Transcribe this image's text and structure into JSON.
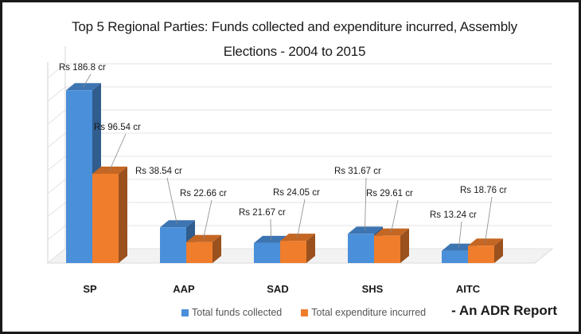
{
  "chart_data": {
    "type": "bar",
    "title": "Top 5 Regional Parties: Funds collected and expenditure incurred, Assembly Elections - 2004 to 2015",
    "categories": [
      "SP",
      "AAP",
      "SAD",
      "SHS",
      "AITC"
    ],
    "series": [
      {
        "name": "Total funds collected",
        "color": "#4a8fd9",
        "values": [
          186.8,
          38.54,
          21.67,
          31.67,
          13.24
        ],
        "labels": [
          "Rs 186.8 cr",
          "Rs 38.54 cr",
          "Rs 21.67 cr",
          "Rs 31.67 cr",
          "Rs 13.24 cr"
        ]
      },
      {
        "name": "Total expenditure incurred",
        "color": "#ef7d2c",
        "values": [
          96.54,
          22.66,
          24.05,
          29.61,
          18.76
        ],
        "labels": [
          "Rs 96.54 cr",
          "Rs 22.66 cr",
          "Rs 24.05 cr",
          "Rs 29.61 cr",
          "Rs 18.76 cr"
        ]
      }
    ],
    "ylim": [
      0,
      200
    ],
    "grid": true,
    "legend_position": "bottom",
    "style": "3d-column"
  },
  "footer": "- An ADR Report"
}
